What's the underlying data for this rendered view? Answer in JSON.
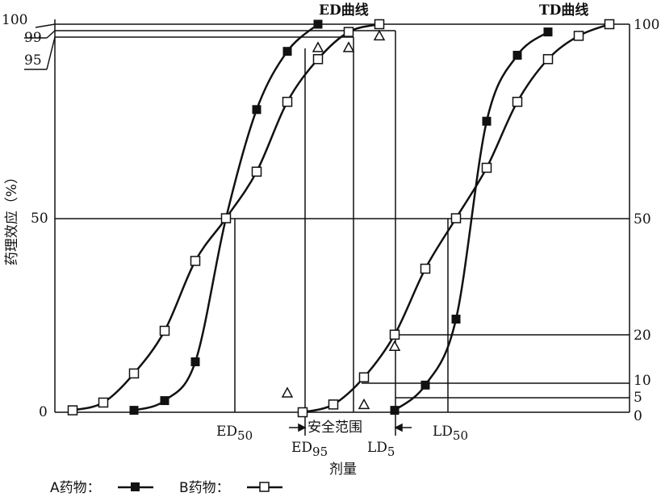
{
  "chart_data": {
    "type": "line",
    "title": "",
    "ylabel": "药理效应（%）",
    "xlabel": "剂量",
    "ylim": [
      0,
      100
    ],
    "grid": false,
    "left_ticks": [
      "0",
      "50",
      "95",
      "99",
      "100"
    ],
    "right_ticks": [
      "0",
      "5",
      "10",
      "20",
      "50",
      "100"
    ],
    "curve_labels": {
      "ed": "ED曲线",
      "td": "TD曲线"
    },
    "annotations": {
      "ed50": {
        "base": "ED",
        "sub": "50"
      },
      "ed95": {
        "base": "ED",
        "sub": "95"
      },
      "ld5": {
        "base": "LD",
        "sub": "5"
      },
      "ld50": {
        "base": "LD",
        "sub": "50"
      },
      "safety_range": "安全范围"
    },
    "legend": {
      "a_label": "A药物：",
      "b_label": "B药物："
    },
    "series": [
      {
        "name": "A药物",
        "marker": "filled-square",
        "curve": "ED",
        "points": [
          [
            2,
            0.5
          ],
          [
            3,
            3
          ],
          [
            4,
            13
          ],
          [
            5,
            50
          ],
          [
            6,
            78
          ],
          [
            7,
            93
          ],
          [
            8,
            100
          ]
        ]
      },
      {
        "name": "B药物",
        "marker": "open-square",
        "curve": "ED",
        "points": [
          [
            0,
            0.5
          ],
          [
            1,
            2.5
          ],
          [
            2,
            10
          ],
          [
            3,
            21
          ],
          [
            4,
            39
          ],
          [
            5,
            50
          ],
          [
            6,
            62
          ],
          [
            7,
            80
          ],
          [
            8,
            91
          ],
          [
            9,
            98
          ],
          [
            10,
            100
          ]
        ]
      },
      {
        "name": "A药物",
        "marker": "filled-square",
        "curve": "TD",
        "points": [
          [
            10.5,
            0.5
          ],
          [
            11.5,
            7
          ],
          [
            12.5,
            24
          ],
          [
            13.5,
            75
          ],
          [
            14.5,
            92
          ],
          [
            15.5,
            98
          ]
        ]
      },
      {
        "name": "B药物",
        "marker": "open-square",
        "curve": "TD",
        "points": [
          [
            7.5,
            0
          ],
          [
            8.5,
            2
          ],
          [
            9.5,
            9
          ],
          [
            10.5,
            20
          ],
          [
            11.5,
            37
          ],
          [
            12.5,
            50
          ],
          [
            13.5,
            63
          ],
          [
            14.5,
            80
          ],
          [
            15.5,
            91
          ],
          [
            16.5,
            97
          ],
          [
            17.5,
            100
          ]
        ]
      }
    ],
    "triangle_points": [
      [
        8,
        94
      ],
      [
        9,
        94
      ],
      [
        10,
        97
      ],
      [
        7,
        5
      ],
      [
        10.5,
        17
      ],
      [
        9.5,
        2
      ]
    ]
  }
}
